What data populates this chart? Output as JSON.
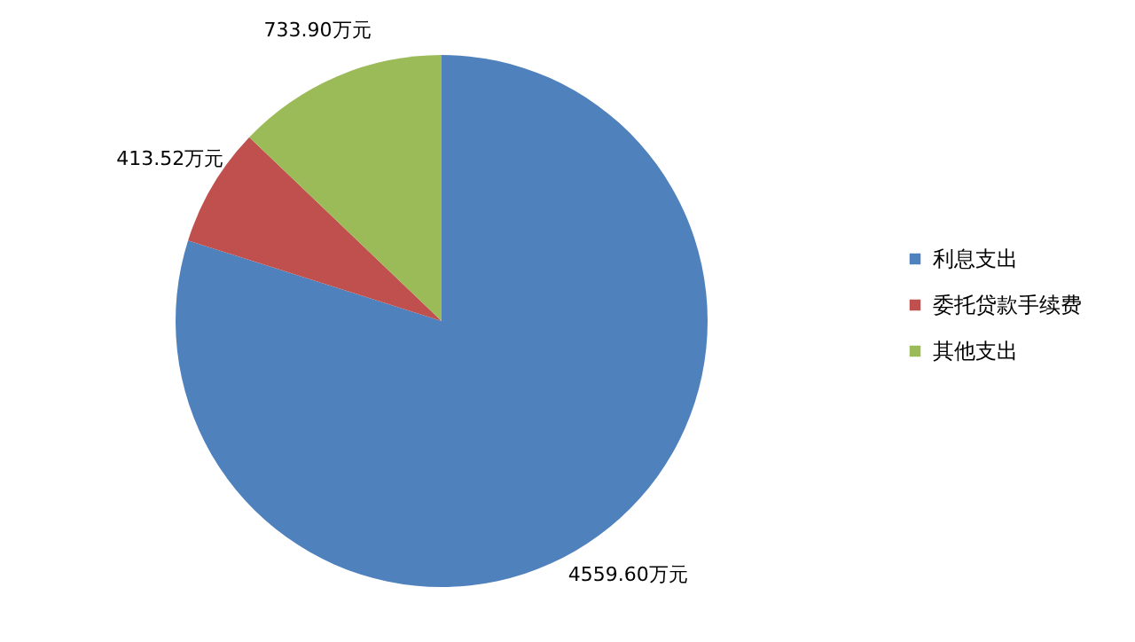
{
  "chart_data": {
    "type": "pie",
    "categories": [
      "利息支出",
      "委托贷款手续费",
      "其他支出"
    ],
    "values": [
      4559.6,
      413.52,
      733.9
    ],
    "colors": [
      "#4f81bd",
      "#c0504d",
      "#9bbb59"
    ],
    "value_labels": [
      "4559.60万元",
      "413.52万元",
      "733.90万元"
    ],
    "legend": "right"
  }
}
